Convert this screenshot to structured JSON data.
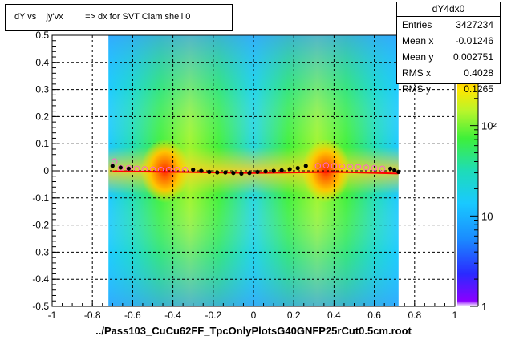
{
  "title": "dY vs    jy'vx         => dx for SVT Clam shell 0",
  "xlabel": "../Pass103_CuCu62FF_TpcOnlyPlotsG40GNFP25rCut0.5cm.root",
  "stats": {
    "name": "dY4dx0",
    "rows": [
      {
        "key": "Entries",
        "value": "3427234"
      },
      {
        "key": "Mean x",
        "value": "-0.01246"
      },
      {
        "key": "Mean y",
        "value": "0.002751"
      },
      {
        "key": "RMS x",
        "value": "0.4028"
      },
      {
        "key": "RMS y",
        "value": "0.1265"
      }
    ]
  },
  "colors": {
    "frame": "#000000",
    "grid": "#000000",
    "black_profile": "#000000",
    "pink_profile": "#ff66cc",
    "fit_line": "#ff0000"
  },
  "chart_data": {
    "type": "heatmap",
    "xlim": [
      -1,
      1
    ],
    "ylim": [
      -0.5,
      0.5
    ],
    "grid": true,
    "log_z": true,
    "zlim": [
      1,
      1000
    ],
    "xticks": [
      "-1",
      "-0.8",
      "-0.6",
      "-0.4",
      "-0.2",
      "0",
      "0.2",
      "0.4",
      "0.6",
      "0.8",
      "1"
    ],
    "yticks": [
      "-0.5",
      "-0.4",
      "-0.3",
      "-0.2",
      "-0.1",
      "0",
      "0.1",
      "0.2",
      "0.3",
      "0.4",
      "0.5"
    ],
    "ztick_labels": [
      {
        "value": 1,
        "label": "1"
      },
      {
        "value": 10,
        "label": "10"
      },
      {
        "value": 100,
        "label": "10²"
      }
    ],
    "data_region": {
      "x": [
        -0.72,
        0.72
      ],
      "y": [
        -0.5,
        0.5
      ]
    },
    "hotspots": [
      {
        "x": -0.44,
        "y": 0.0,
        "peak": 700
      },
      {
        "x": 0.36,
        "y": 0.0,
        "peak": 700
      }
    ],
    "profile_black": [
      {
        "x": -0.7,
        "y": 0.018
      },
      {
        "x": -0.66,
        "y": 0.012
      },
      {
        "x": -0.62,
        "y": 0.008
      },
      {
        "x": -0.3,
        "y": 0.004
      },
      {
        "x": -0.26,
        "y": 0.0
      },
      {
        "x": -0.22,
        "y": -0.004
      },
      {
        "x": -0.18,
        "y": -0.006
      },
      {
        "x": -0.14,
        "y": -0.006
      },
      {
        "x": -0.1,
        "y": -0.008
      },
      {
        "x": -0.06,
        "y": -0.01
      },
      {
        "x": -0.02,
        "y": -0.008
      },
      {
        "x": 0.02,
        "y": -0.004
      },
      {
        "x": 0.06,
        "y": -0.002
      },
      {
        "x": 0.1,
        "y": 0.0
      },
      {
        "x": 0.14,
        "y": 0.002
      },
      {
        "x": 0.18,
        "y": 0.006
      },
      {
        "x": 0.22,
        "y": 0.01
      },
      {
        "x": 0.26,
        "y": 0.018
      },
      {
        "x": 0.68,
        "y": 0.008
      },
      {
        "x": 0.7,
        "y": 0.002
      },
      {
        "x": 0.72,
        "y": -0.004
      }
    ],
    "profile_pink": [
      {
        "x": -0.69,
        "y": 0.035
      },
      {
        "x": -0.66,
        "y": 0.01
      },
      {
        "x": -0.62,
        "y": 0.01
      },
      {
        "x": -0.58,
        "y": 0.008
      },
      {
        "x": -0.54,
        "y": 0.006
      },
      {
        "x": -0.5,
        "y": 0.005
      },
      {
        "x": -0.46,
        "y": 0.004
      },
      {
        "x": -0.42,
        "y": 0.004
      },
      {
        "x": -0.38,
        "y": 0.004
      },
      {
        "x": -0.34,
        "y": 0.004
      },
      {
        "x": 0.32,
        "y": 0.018
      },
      {
        "x": 0.36,
        "y": 0.02
      },
      {
        "x": 0.4,
        "y": 0.018
      },
      {
        "x": 0.44,
        "y": 0.016
      },
      {
        "x": 0.48,
        "y": 0.015
      },
      {
        "x": 0.52,
        "y": 0.014
      },
      {
        "x": 0.56,
        "y": 0.012
      },
      {
        "x": 0.6,
        "y": 0.01
      },
      {
        "x": 0.64,
        "y": 0.008
      }
    ],
    "fit_line": [
      {
        "x": -0.7,
        "y": -0.002
      },
      {
        "x": -0.4,
        "y": -0.004
      },
      {
        "x": 0.0,
        "y": -0.008
      },
      {
        "x": 0.4,
        "y": -0.004
      },
      {
        "x": 0.72,
        "y": -0.01
      }
    ]
  }
}
